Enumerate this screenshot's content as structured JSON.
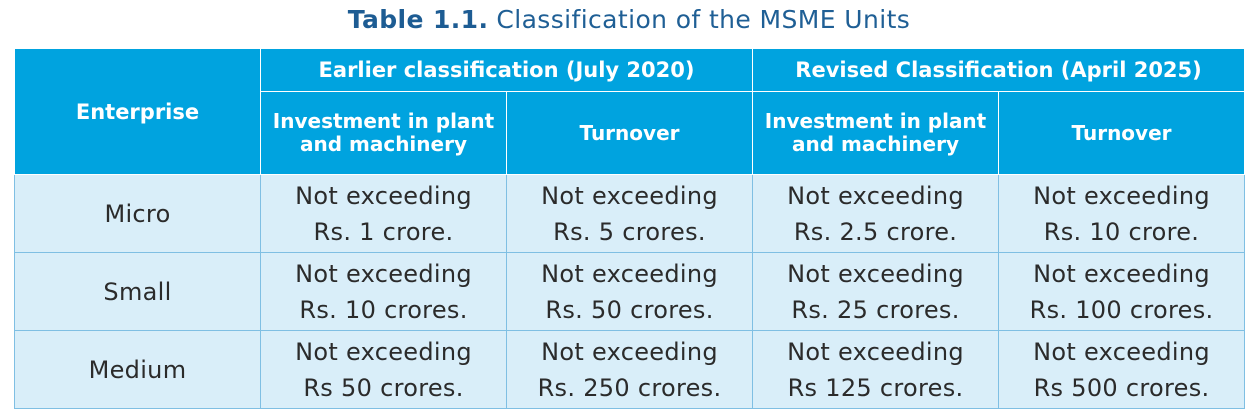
{
  "caption": {
    "label": "Table 1.1.",
    "text": "Classification of the MSME Units"
  },
  "table": {
    "enterprise_header": "Enterprise",
    "groups": [
      "Earlier classification (July 2020)",
      "Revised Classification (April 2025)"
    ],
    "subheaders": [
      {
        "line1": "Investment in plant",
        "line2": "and machinery"
      },
      {
        "line1": "Turnover",
        "line2": ""
      },
      {
        "line1": "Investment in plant",
        "line2": "and machinery"
      },
      {
        "line1": "Turnover",
        "line2": ""
      }
    ],
    "rows": [
      {
        "enterprise": "Micro",
        "cells": [
          {
            "line1": "Not exceeding",
            "line2": "Rs. 1 crore."
          },
          {
            "line1": "Not exceeding",
            "line2": "Rs. 5 crores."
          },
          {
            "line1": "Not exceeding",
            "line2": "Rs. 2.5 crore."
          },
          {
            "line1": "Not exceeding",
            "line2": "Rs. 10 crore."
          }
        ]
      },
      {
        "enterprise": "Small",
        "cells": [
          {
            "line1": "Not exceeding",
            "line2": "Rs. 10 crores."
          },
          {
            "line1": "Not exceeding",
            "line2": "Rs. 50 crores."
          },
          {
            "line1": "Not exceeding",
            "line2": "Rs. 25 crores."
          },
          {
            "line1": "Not exceeding",
            "line2": "Rs. 100 crores."
          }
        ]
      },
      {
        "enterprise": "Medium",
        "cells": [
          {
            "line1": "Not exceeding",
            "line2": "Rs 50 crores."
          },
          {
            "line1": "Not exceeding",
            "line2": "Rs. 250 crores."
          },
          {
            "line1": "Not exceeding",
            "line2": "Rs 125 crores."
          },
          {
            "line1": "Not exceeding",
            "line2": "Rs 500 crores."
          }
        ]
      }
    ]
  },
  "colors": {
    "header_bg": "#00a3df",
    "body_bg": "#d9eef9",
    "caption_text": "#1f5f95"
  }
}
